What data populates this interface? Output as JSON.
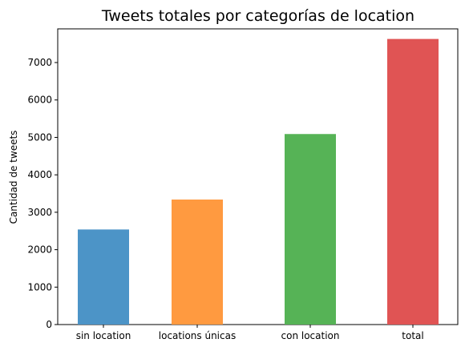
{
  "chart_data": {
    "type": "bar",
    "title": "Tweets totales por categorías de location",
    "xlabel": "",
    "ylabel": "Cantidad de tweets",
    "categories": [
      "sin location",
      "locations únicas",
      "con location",
      "total"
    ],
    "values": [
      2540,
      3340,
      5090,
      7630
    ],
    "colors": [
      "#4c94c7",
      "#ff9a40",
      "#56b356",
      "#e05454"
    ],
    "ylim": [
      0,
      7900
    ],
    "yticks": [
      0,
      1000,
      2000,
      3000,
      4000,
      5000,
      6000,
      7000
    ],
    "grid": false
  }
}
